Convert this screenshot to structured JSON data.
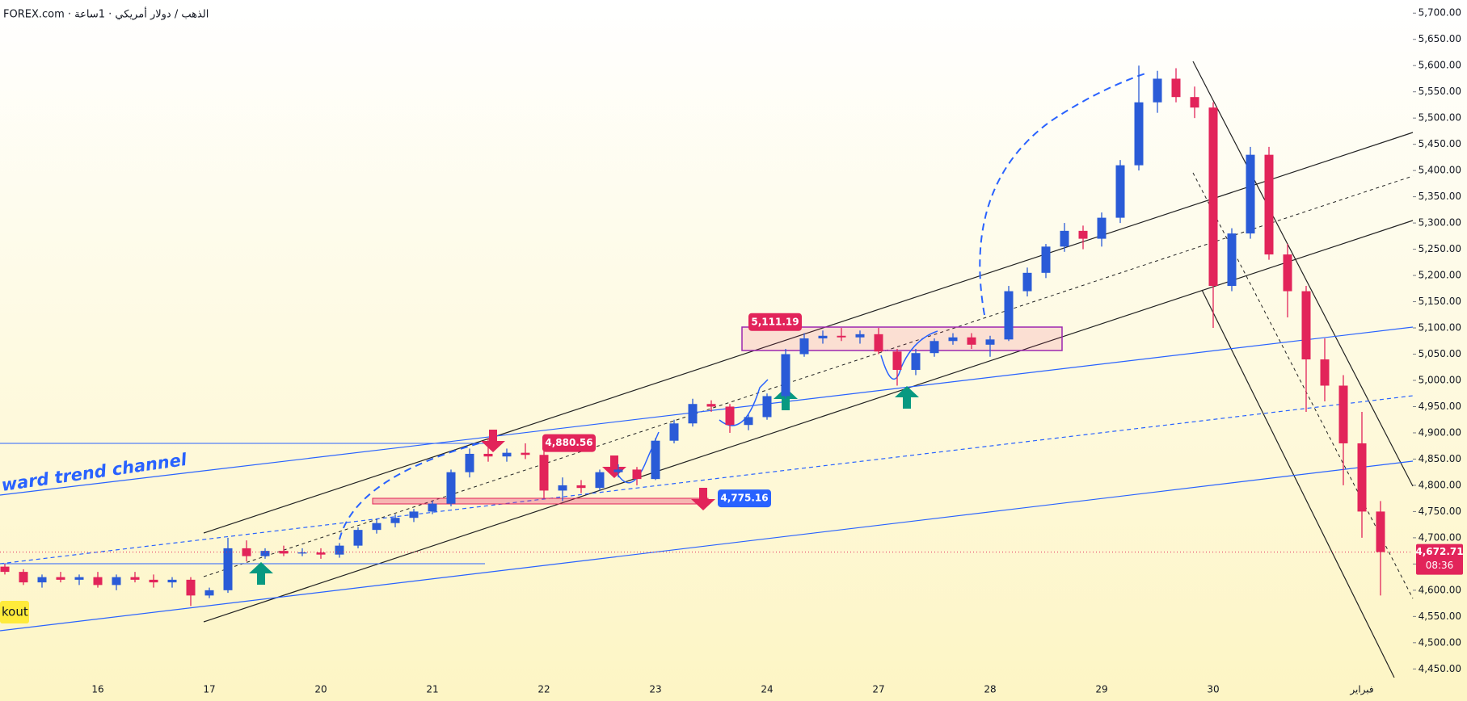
{
  "chart_data": {
    "type": "candlestick",
    "title": "FOREX.com · الذهب / دولار أمريكي · 1ساعة",
    "categories": [
      null,
      null,
      null,
      null,
      null,
      "16",
      null,
      null,
      null,
      null,
      null,
      "17",
      null,
      null,
      null,
      null,
      null,
      "20",
      null,
      null,
      null,
      null,
      null,
      "21",
      null,
      null,
      null,
      null,
      null,
      "22",
      null,
      null,
      null,
      null,
      null,
      "23",
      null,
      null,
      null,
      null,
      null,
      "24",
      null,
      null,
      null,
      null,
      null,
      "27",
      null,
      null,
      null,
      null,
      null,
      "28",
      null,
      null,
      null,
      null,
      null,
      "29",
      null,
      null,
      null,
      null,
      null,
      "30",
      null,
      null,
      null,
      null,
      null,
      null,
      null,
      "فبراير",
      null
    ],
    "open": [
      4645,
      4635,
      4615,
      4625,
      4620,
      4625,
      4610,
      4625,
      4620,
      4615,
      4620,
      4590,
      4600,
      4680,
      4665,
      4675,
      4670,
      4672,
      4668,
      4685,
      4715,
      4728,
      4738,
      4750,
      4765,
      4825,
      4860,
      4855,
      4862,
      4858,
      4790,
      4800,
      4795,
      4825,
      4830,
      4812,
      4885,
      4918,
      4955,
      4950,
      4915,
      4930,
      4970,
      5050,
      5080,
      5085,
      5082,
      5088,
      5055,
      5020,
      5052,
      5075,
      5082,
      5068,
      5078,
      5170,
      5205,
      5255,
      5285,
      5270,
      5310,
      5410,
      5530,
      5575,
      5540,
      5520,
      5180,
      5280,
      5430,
      5240,
      5170,
      5040,
      4990,
      4880,
      4750
    ],
    "high": [
      4650,
      4640,
      4630,
      4635,
      4630,
      4635,
      4630,
      4635,
      4630,
      4625,
      4625,
      4605,
      4700,
      4695,
      4680,
      4685,
      4680,
      4680,
      4690,
      4720,
      4735,
      4745,
      4755,
      4770,
      4830,
      4870,
      4890,
      4870,
      4880,
      4865,
      4815,
      4810,
      4830,
      4840,
      4835,
      4890,
      4925,
      4965,
      4962,
      4955,
      4935,
      4975,
      5060,
      5090,
      5095,
      5100,
      5095,
      5100,
      5060,
      5060,
      5080,
      5090,
      5090,
      5085,
      5180,
      5215,
      5260,
      5300,
      5295,
      5320,
      5420,
      5600,
      5590,
      5595,
      5560,
      5530,
      5290,
      5445,
      5445,
      5260,
      5180,
      5080,
      5010,
      4940,
      4770
    ],
    "low": [
      4630,
      4610,
      4605,
      4615,
      4610,
      4605,
      4600,
      4615,
      4605,
      4605,
      4570,
      4585,
      4595,
      4655,
      4660,
      4665,
      4665,
      4660,
      4662,
      4680,
      4708,
      4720,
      4730,
      4745,
      4760,
      4815,
      4845,
      4845,
      4850,
      4775,
      4770,
      4785,
      4790,
      4815,
      4800,
      4810,
      4880,
      4912,
      4940,
      4900,
      4905,
      4925,
      4965,
      5045,
      5070,
      5075,
      5070,
      5050,
      4990,
      5010,
      5045,
      5068,
      5060,
      5045,
      5075,
      5160,
      5195,
      5245,
      5250,
      5255,
      5300,
      5400,
      5510,
      5530,
      5500,
      5100,
      5170,
      5270,
      5230,
      5120,
      4940,
      4960,
      4800,
      4700,
      4590
    ],
    "close": [
      4635,
      4615,
      4625,
      4620,
      4625,
      4610,
      4625,
      4620,
      4615,
      4620,
      4590,
      4600,
      4680,
      4665,
      4675,
      4670,
      4672,
      4668,
      4685,
      4715,
      4728,
      4738,
      4750,
      4765,
      4825,
      4860,
      4855,
      4862,
      4858,
      4790,
      4800,
      4795,
      4825,
      4830,
      4812,
      4885,
      4918,
      4955,
      4950,
      4915,
      4930,
      4970,
      5050,
      5080,
      5085,
      5082,
      5088,
      5055,
      5020,
      5052,
      5075,
      5082,
      5068,
      5078,
      5170,
      5205,
      5255,
      5285,
      5270,
      5310,
      5410,
      5530,
      5575,
      5540,
      5520,
      5180,
      5280,
      5430,
      5240,
      5170,
      5040,
      4990,
      4880,
      4750,
      4672.71
    ],
    "up_color": "#2a5bd7",
    "down_color": "#e2245a",
    "ylim": [
      4432,
      5725
    ],
    "yticks": [
      {
        "value": 4450,
        "label": "4,450.00"
      },
      {
        "value": 4500,
        "label": "4,500.00"
      },
      {
        "value": 4550,
        "label": "4,550.00"
      },
      {
        "value": 4600,
        "label": "4,600.00"
      },
      {
        "value": 4650,
        "label": "4,650.00"
      },
      {
        "value": 4700,
        "label": "4,700.00"
      },
      {
        "value": 4750,
        "label": "4,750.00"
      },
      {
        "value": 4800,
        "label": "4,800.00"
      },
      {
        "value": 4850,
        "label": "4,850.00"
      },
      {
        "value": 4900,
        "label": "4,900.00"
      },
      {
        "value": 4950,
        "label": "4,950.00"
      },
      {
        "value": 5000,
        "label": "5,000.00"
      },
      {
        "value": 5050,
        "label": "5,050.00"
      },
      {
        "value": 5100,
        "label": "5,100.00"
      },
      {
        "value": 5150,
        "label": "5,150.00"
      },
      {
        "value": 5200,
        "label": "5,200.00"
      },
      {
        "value": 5250,
        "label": "5,250.00"
      },
      {
        "value": 5300,
        "label": "5,300.00"
      },
      {
        "value": 5350,
        "label": "5,350.00"
      },
      {
        "value": 5400,
        "label": "5,400.00"
      },
      {
        "value": 5450,
        "label": "5,450.00"
      },
      {
        "value": 5500,
        "label": "5,500.00"
      },
      {
        "value": 5550,
        "label": "5,550.00"
      },
      {
        "value": 5600,
        "label": "5,600.00"
      },
      {
        "value": 5650,
        "label": "5,650.00"
      },
      {
        "value": 5700,
        "label": "5,700.00"
      }
    ],
    "grid": false,
    "last_price": {
      "value": 4672.71,
      "label": "4,672.71",
      "color": "#e2245a"
    },
    "countdown": "08:36",
    "annotations": [
      {
        "value": 5111.19,
        "label": "5,111.19",
        "color": "#e2245a"
      },
      {
        "value": 4880.56,
        "label": "4,880.56",
        "color": "#e2245a"
      },
      {
        "value": 4775.16,
        "label": "4,775.16",
        "color": "#2962ff"
      }
    ],
    "notes": [
      "ward trend channel",
      "kout"
    ]
  }
}
